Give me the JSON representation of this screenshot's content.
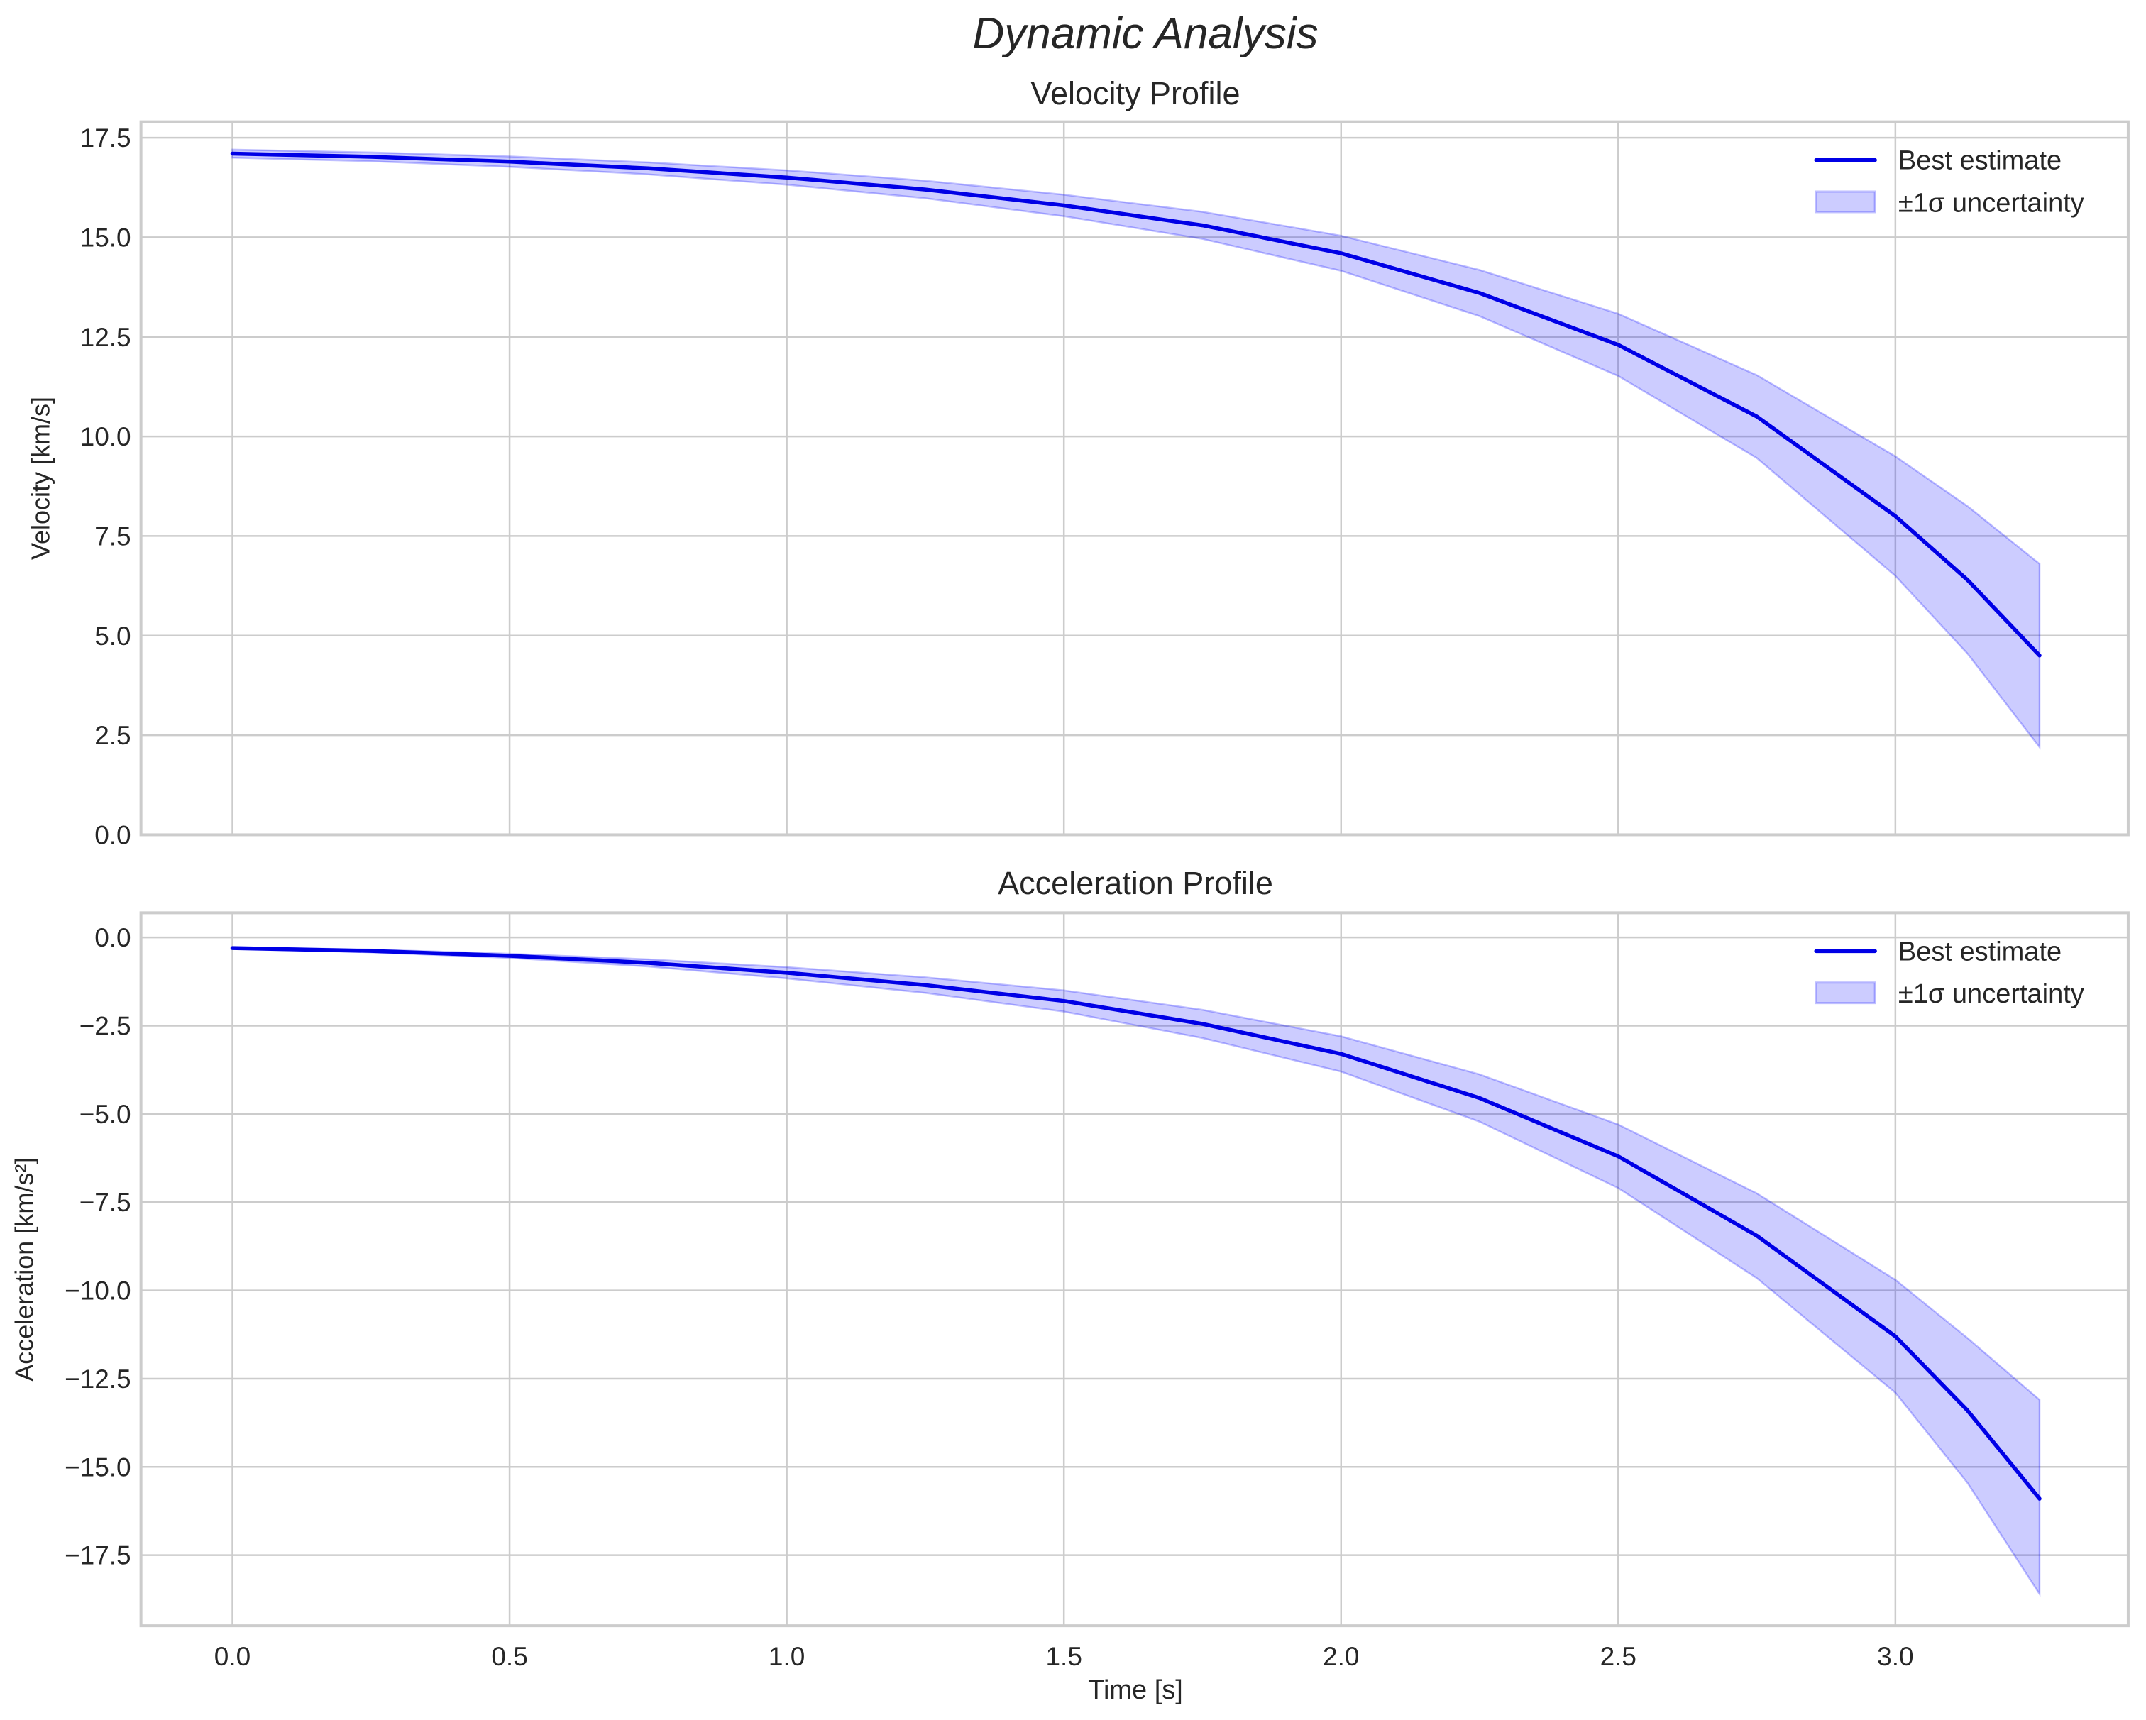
{
  "figure": {
    "title": "Dynamic Analysis",
    "background": "#ffffff",
    "grid_color": "#cccccc",
    "text_color": "#262626",
    "line_color": "#0000e6",
    "band_color": "#0000ff",
    "band_alpha": 0.2
  },
  "legend": {
    "line_label": "Best estimate",
    "band_label": "±1σ uncertainty"
  },
  "chart_data": [
    {
      "type": "line",
      "title": "Velocity Profile",
      "xlabel": "",
      "ylabel": "Velocity [km/s]",
      "xlim": [
        -0.165,
        3.42
      ],
      "ylim": [
        0.0,
        17.9
      ],
      "xticks": [
        0.0,
        0.5,
        1.0,
        1.5,
        2.0,
        2.5,
        3.0
      ],
      "xtick_labels": [
        "",
        "",
        "",
        "",
        "",
        "",
        ""
      ],
      "yticks": [
        0.0,
        2.5,
        5.0,
        7.5,
        10.0,
        12.5,
        15.0,
        17.5
      ],
      "ytick_labels": [
        "0.0",
        "2.5",
        "5.0",
        "7.5",
        "10.0",
        "12.5",
        "15.0",
        "17.5"
      ],
      "grid": true,
      "legend_position": "upper right",
      "x": [
        0.0,
        0.25,
        0.5,
        0.75,
        1.0,
        1.25,
        1.5,
        1.75,
        2.0,
        2.25,
        2.5,
        2.75,
        3.0,
        3.13,
        3.26
      ],
      "series": [
        {
          "name": "Best estimate",
          "values": [
            17.1,
            17.02,
            16.9,
            16.73,
            16.5,
            16.2,
            15.8,
            15.3,
            14.6,
            13.6,
            12.3,
            10.5,
            8.0,
            6.4,
            4.5
          ]
        },
        {
          "name": "±1σ uncertainty (upper)",
          "values": [
            17.2,
            17.13,
            17.03,
            16.88,
            16.68,
            16.42,
            16.07,
            15.64,
            15.04,
            14.18,
            13.08,
            11.54,
            9.5,
            8.25,
            6.8
          ]
        },
        {
          "name": "±1σ uncertainty (lower)",
          "values": [
            17.0,
            16.91,
            16.77,
            16.58,
            16.32,
            15.98,
            15.53,
            14.96,
            14.16,
            13.02,
            11.52,
            9.46,
            6.5,
            4.55,
            2.2
          ]
        }
      ]
    },
    {
      "type": "line",
      "title": "Acceleration Profile",
      "xlabel": "Time [s]",
      "ylabel": "Acceleration [km/s²]",
      "xlim": [
        -0.165,
        3.42
      ],
      "ylim": [
        -19.5,
        0.7
      ],
      "xticks": [
        0.0,
        0.5,
        1.0,
        1.5,
        2.0,
        2.5,
        3.0
      ],
      "xtick_labels": [
        "0.0",
        "0.5",
        "1.0",
        "1.5",
        "2.0",
        "2.5",
        "3.0"
      ],
      "yticks": [
        0.0,
        -2.5,
        -5.0,
        -7.5,
        -10.0,
        -12.5,
        -15.0,
        -17.5
      ],
      "ytick_labels": [
        "0.0",
        "−2.5",
        "−5.0",
        "−7.5",
        "−10.0",
        "−12.5",
        "−15.0",
        "−17.5"
      ],
      "grid": true,
      "legend_position": "upper right",
      "x": [
        0.0,
        0.25,
        0.5,
        0.75,
        1.0,
        1.25,
        1.5,
        1.75,
        2.0,
        2.25,
        2.5,
        2.75,
        3.0,
        3.13,
        3.26
      ],
      "series": [
        {
          "name": "Best estimate",
          "values": [
            -0.3,
            -0.38,
            -0.52,
            -0.72,
            -1.0,
            -1.35,
            -1.8,
            -2.45,
            -3.3,
            -4.55,
            -6.2,
            -8.45,
            -11.3,
            -13.4,
            -15.9
          ]
        },
        {
          "name": "±1σ uncertainty (upper)",
          "values": [
            -0.28,
            -0.34,
            -0.46,
            -0.62,
            -0.84,
            -1.13,
            -1.5,
            -2.05,
            -2.8,
            -3.88,
            -5.3,
            -7.25,
            -9.7,
            -11.35,
            -13.1
          ]
        },
        {
          "name": "±1σ uncertainty (lower)",
          "values": [
            -0.32,
            -0.42,
            -0.58,
            -0.82,
            -1.16,
            -1.57,
            -2.1,
            -2.85,
            -3.8,
            -5.22,
            -7.1,
            -9.65,
            -12.9,
            -15.45,
            -18.6
          ]
        }
      ]
    }
  ]
}
